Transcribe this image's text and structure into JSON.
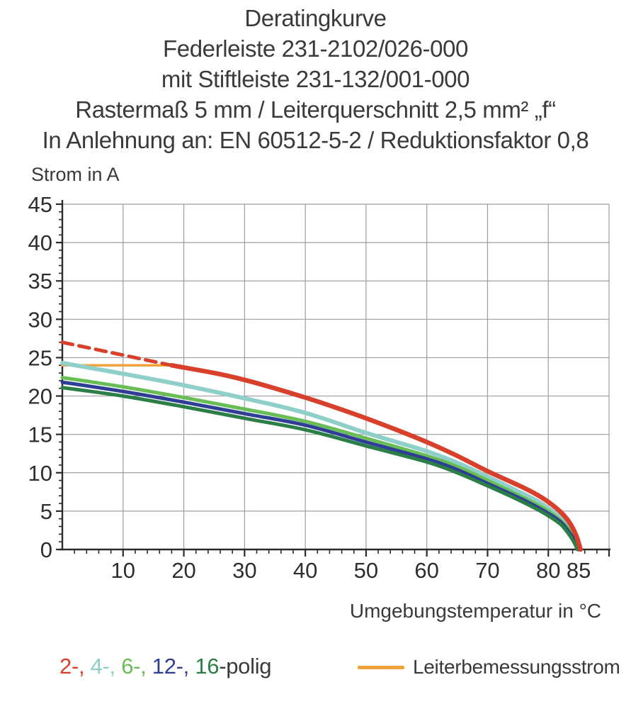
{
  "title": {
    "line1": "Deratingkurve",
    "line2": "Federleiste 231-2102/026-000",
    "line3": "mit Stiftleiste 231-132/001-000",
    "line4": "Rastermaß 5 mm / Leiterquerschnitt 2,5 mm² „f“",
    "line5": "In Anlehnung an: EN 60512-5-2 / Reduktionsfaktor 0,8"
  },
  "legend": {
    "pole_items": [
      {
        "text": "2-, ",
        "color": "#d8402c"
      },
      {
        "text": "4-, ",
        "color": "#8fcfc9"
      },
      {
        "text": "6-, ",
        "color": "#68bd54"
      },
      {
        "text": "12-, ",
        "color": "#2e3d95"
      },
      {
        "text": "16",
        "color": "#2b7e46"
      },
      {
        "text": "-polig",
        "color": "#3a3a3a"
      }
    ],
    "leiter_label": "Leiterbemessungsstrom",
    "leiter_color": "#f1a23a"
  },
  "chart_data": {
    "type": "line",
    "title": "Deratingkurve",
    "ylabel": "Strom in A",
    "xlabel": "Umgebungstemperatur in °C",
    "xlim": [
      0,
      90
    ],
    "ylim": [
      0,
      45
    ],
    "grid": true,
    "x_tick_labels": [
      10,
      20,
      30,
      40,
      50,
      60,
      70,
      80,
      85
    ],
    "y_tick_labels": [
      45,
      40,
      35,
      30,
      25,
      20,
      15,
      10,
      5,
      0
    ],
    "x_minor_step": 2,
    "y_minor_step": 1,
    "colors": {
      "grid": "#9e9e9e",
      "axis": "#2b2b2b",
      "tick_text": "#2e2e2e"
    },
    "series": [
      {
        "name": "Leiterbemessungsstrom",
        "color": "#f1a23a",
        "width": 3.5,
        "dash": null,
        "smooth": false,
        "points": [
          [
            0,
            24
          ],
          [
            18,
            24
          ]
        ]
      },
      {
        "name": "2-polig (gestrichelt)",
        "color": "#d8402c",
        "width": 5,
        "dash": "15 9",
        "smooth": false,
        "points": [
          [
            0,
            27
          ],
          [
            18,
            24
          ]
        ]
      },
      {
        "name": "4-polig",
        "color": "#8fcfc9",
        "width": 6,
        "dash": null,
        "smooth": true,
        "points": [
          [
            0,
            24.3
          ],
          [
            10,
            22.9
          ],
          [
            20,
            21.4
          ],
          [
            30,
            19.7
          ],
          [
            40,
            17.8
          ],
          [
            50,
            15.2
          ],
          [
            60,
            12.8
          ],
          [
            65,
            11.3
          ],
          [
            70,
            9.5
          ],
          [
            75,
            7.6
          ],
          [
            78,
            6.4
          ],
          [
            80,
            5.4
          ],
          [
            82,
            4.1
          ],
          [
            83.5,
            2.8
          ],
          [
            84.6,
            1.4
          ],
          [
            85.1,
            0
          ]
        ]
      },
      {
        "name": "6-polig",
        "color": "#68bd54",
        "width": 5,
        "dash": null,
        "smooth": true,
        "points": [
          [
            0,
            22.4
          ],
          [
            10,
            21.2
          ],
          [
            20,
            19.8
          ],
          [
            30,
            18.3
          ],
          [
            40,
            16.7
          ],
          [
            50,
            14.5
          ],
          [
            60,
            12.2
          ],
          [
            65,
            10.8
          ],
          [
            70,
            9.0
          ],
          [
            75,
            7.1
          ],
          [
            78,
            5.9
          ],
          [
            80,
            5.0
          ],
          [
            82,
            3.8
          ],
          [
            83.4,
            2.6
          ],
          [
            84.4,
            1.3
          ],
          [
            85,
            0
          ]
        ]
      },
      {
        "name": "12-polig",
        "color": "#2e3d95",
        "width": 5,
        "dash": null,
        "smooth": true,
        "points": [
          [
            0,
            21.8
          ],
          [
            10,
            20.6
          ],
          [
            20,
            19.2
          ],
          [
            30,
            17.7
          ],
          [
            40,
            16.2
          ],
          [
            50,
            14.0
          ],
          [
            60,
            11.8
          ],
          [
            65,
            10.4
          ],
          [
            70,
            8.6
          ],
          [
            75,
            6.8
          ],
          [
            78,
            5.6
          ],
          [
            80,
            4.7
          ],
          [
            82,
            3.6
          ],
          [
            83.3,
            2.4
          ],
          [
            84.3,
            1.2
          ],
          [
            84.9,
            0
          ]
        ]
      },
      {
        "name": "16-polig",
        "color": "#2b7e46",
        "width": 5,
        "dash": null,
        "smooth": true,
        "points": [
          [
            0,
            21.1
          ],
          [
            10,
            20.0
          ],
          [
            20,
            18.6
          ],
          [
            30,
            17.1
          ],
          [
            40,
            15.6
          ],
          [
            50,
            13.5
          ],
          [
            60,
            11.4
          ],
          [
            65,
            10.0
          ],
          [
            70,
            8.3
          ],
          [
            75,
            6.5
          ],
          [
            78,
            5.3
          ],
          [
            80,
            4.4
          ],
          [
            82,
            3.3
          ],
          [
            83.2,
            2.2
          ],
          [
            84.2,
            1.0
          ],
          [
            84.8,
            0
          ]
        ]
      },
      {
        "name": "2-polig",
        "color": "#d8402c",
        "width": 6.5,
        "dash": null,
        "smooth": true,
        "points": [
          [
            18,
            24
          ],
          [
            25,
            23.0
          ],
          [
            30,
            22.1
          ],
          [
            35,
            21.0
          ],
          [
            40,
            19.8
          ],
          [
            45,
            18.5
          ],
          [
            50,
            17.1
          ],
          [
            55,
            15.6
          ],
          [
            60,
            14.0
          ],
          [
            65,
            12.2
          ],
          [
            70,
            10.2
          ],
          [
            75,
            8.4
          ],
          [
            78,
            7.2
          ],
          [
            80,
            6.2
          ],
          [
            82,
            4.9
          ],
          [
            83.5,
            3.5
          ],
          [
            84.6,
            1.8
          ],
          [
            85.3,
            0
          ]
        ]
      }
    ]
  }
}
